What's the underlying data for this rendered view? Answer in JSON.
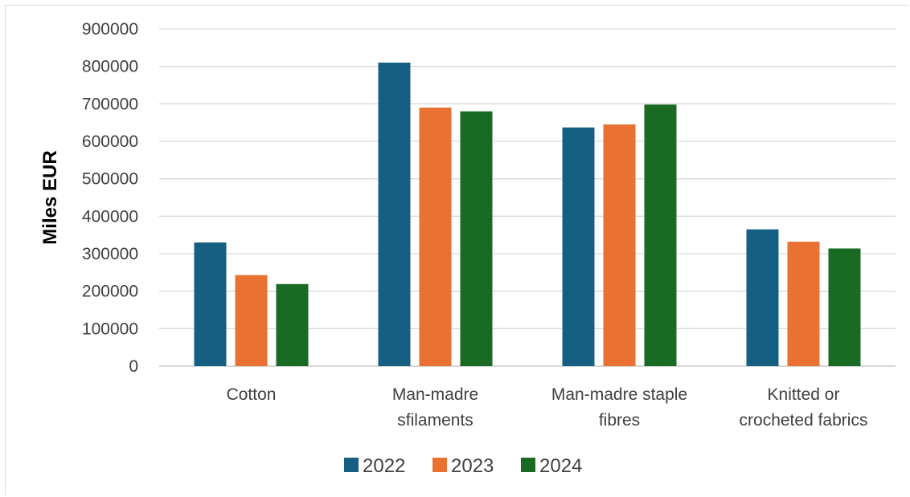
{
  "chart_data": {
    "type": "bar",
    "title": "",
    "xlabel": "",
    "ylabel": "Miles EUR",
    "ylim": [
      0,
      900000
    ],
    "yticks": [
      "0",
      "100000",
      "200000",
      "300000",
      "400000",
      "500000",
      "600000",
      "700000",
      "800000",
      "900000"
    ],
    "categories": [
      [
        "Cotton"
      ],
      [
        "Man-madre",
        "sfilaments"
      ],
      [
        "Man-madre staple",
        "fibres"
      ],
      [
        "Knitted or",
        "crocheted fabrics"
      ]
    ],
    "series": [
      {
        "name": "2022",
        "color": "#156082",
        "values": [
          330000,
          810000,
          637000,
          365000
        ]
      },
      {
        "name": "2023",
        "color": "#E97132",
        "values": [
          243000,
          690000,
          645000,
          332000
        ]
      },
      {
        "name": "2024",
        "color": "#196B24",
        "values": [
          219000,
          680000,
          698000,
          314000
        ]
      }
    ],
    "grid": true,
    "legend_position": "bottom"
  }
}
